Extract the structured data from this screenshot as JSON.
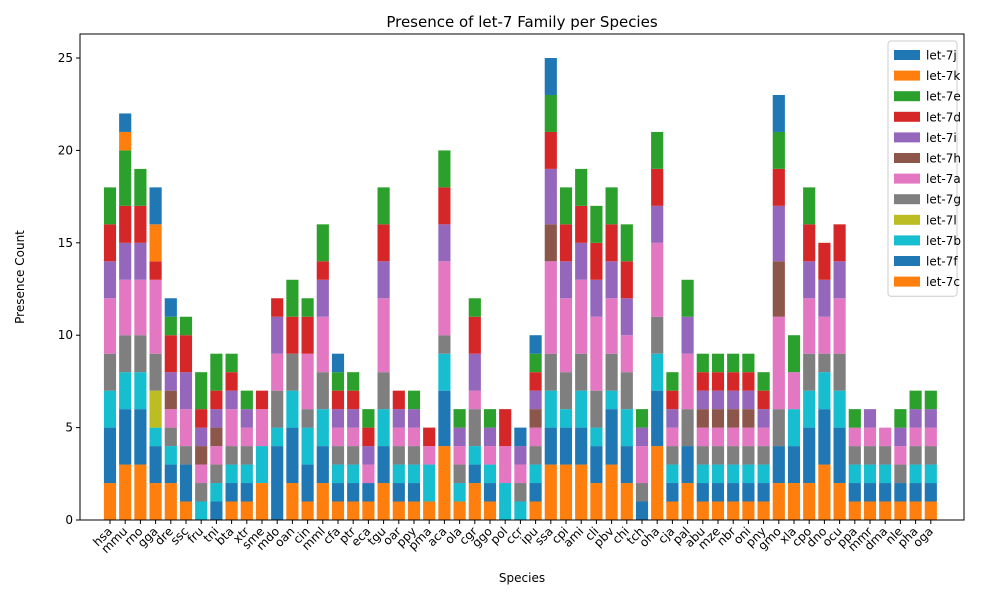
{
  "chart_data": {
    "type": "bar",
    "stacked": true,
    "title": "Presence of let-7 Family per Species",
    "xlabel": "Species",
    "ylabel": "Presence Count",
    "ylim": [
      0,
      26.3
    ],
    "yticks": [
      0,
      5,
      10,
      15,
      20,
      25
    ],
    "grid": false,
    "legend": "top-right",
    "categories": [
      "hsa",
      "mmu",
      "rno",
      "gga",
      "dre",
      "ssc",
      "fru",
      "tni",
      "bta",
      "xtr",
      "sme",
      "mdo",
      "oan",
      "cin",
      "mml",
      "cfa",
      "ptr",
      "eca",
      "tgu",
      "oar",
      "ppy",
      "pma",
      "aca",
      "ola",
      "cgr",
      "ggo",
      "pol",
      "ccr",
      "ipu",
      "ssa",
      "cpi",
      "ami",
      "cli",
      "pbv",
      "chi",
      "tch",
      "oha",
      "cja",
      "pal",
      "abu",
      "mze",
      "nbr",
      "oni",
      "pny",
      "gmo",
      "xla",
      "cpo",
      "dno",
      "ocu",
      "ppa",
      "mmr",
      "dma",
      "nle",
      "pha",
      "oga"
    ],
    "series": [
      {
        "name": "let-7c",
        "color": "#ff7f0e",
        "values": [
          2,
          3,
          3,
          2,
          2,
          1,
          0,
          0,
          1,
          1,
          2,
          0,
          2,
          1,
          2,
          1,
          1,
          1,
          2,
          1,
          1,
          1,
          4,
          1,
          2,
          1,
          0,
          0,
          1,
          3,
          3,
          3,
          2,
          3,
          2,
          0,
          4,
          1,
          2,
          1,
          1,
          1,
          1,
          1,
          2,
          2,
          2,
          3,
          2,
          1,
          1,
          1,
          1,
          1,
          1
        ]
      },
      {
        "name": "let-7f",
        "color": "#1f77b4",
        "values": [
          3,
          3,
          3,
          2,
          1,
          2,
          0,
          1,
          1,
          1,
          0,
          4,
          3,
          2,
          2,
          1,
          1,
          1,
          2,
          1,
          1,
          0,
          3,
          0,
          1,
          1,
          0,
          0,
          1,
          2,
          2,
          2,
          2,
          3,
          2,
          1,
          3,
          1,
          2,
          1,
          1,
          1,
          1,
          1,
          2,
          2,
          3,
          3,
          3,
          1,
          1,
          1,
          1,
          1,
          1
        ]
      },
      {
        "name": "let-7b",
        "color": "#17becf",
        "values": [
          2,
          2,
          2,
          1,
          1,
          0,
          1,
          1,
          1,
          1,
          2,
          1,
          2,
          2,
          2,
          1,
          1,
          0,
          2,
          1,
          1,
          2,
          2,
          1,
          1,
          1,
          2,
          1,
          1,
          2,
          1,
          2,
          1,
          1,
          2,
          0,
          2,
          1,
          0,
          1,
          1,
          1,
          1,
          1,
          0,
          2,
          2,
          2,
          2,
          1,
          1,
          1,
          0,
          1,
          1
        ]
      },
      {
        "name": "let-7l",
        "color": "#bcbd22",
        "values": [
          0,
          0,
          0,
          2,
          0,
          0,
          0,
          0,
          0,
          0,
          0,
          0,
          0,
          0,
          0,
          0,
          0,
          0,
          0,
          0,
          0,
          0,
          0,
          0,
          0,
          0,
          0,
          0,
          0,
          0,
          0,
          0,
          0,
          0,
          0,
          0,
          0,
          0,
          0,
          0,
          0,
          0,
          0,
          0,
          0,
          0,
          0,
          0,
          0,
          0,
          0,
          0,
          0,
          0,
          0
        ]
      },
      {
        "name": "let-7g",
        "color": "#7f7f7f",
        "values": [
          2,
          2,
          2,
          2,
          1,
          1,
          1,
          1,
          1,
          1,
          0,
          2,
          2,
          1,
          2,
          1,
          1,
          0,
          2,
          1,
          1,
          0,
          1,
          1,
          2,
          0,
          0,
          1,
          1,
          2,
          2,
          2,
          2,
          2,
          2,
          1,
          2,
          1,
          2,
          1,
          1,
          1,
          1,
          1,
          2,
          0,
          2,
          1,
          2,
          1,
          1,
          1,
          1,
          1,
          1
        ]
      },
      {
        "name": "let-7a",
        "color": "#e377c2",
        "values": [
          3,
          3,
          3,
          4,
          1,
          2,
          1,
          1,
          2,
          1,
          2,
          2,
          0,
          3,
          3,
          1,
          1,
          1,
          4,
          1,
          1,
          1,
          4,
          1,
          1,
          1,
          2,
          1,
          1,
          5,
          4,
          4,
          4,
          3,
          2,
          2,
          4,
          1,
          3,
          1,
          1,
          1,
          1,
          1,
          5,
          2,
          3,
          2,
          3,
          1,
          1,
          1,
          1,
          1,
          1
        ]
      },
      {
        "name": "let-7h",
        "color": "#8c564b",
        "values": [
          0,
          0,
          0,
          0,
          1,
          0,
          1,
          1,
          0,
          0,
          0,
          0,
          0,
          0,
          0,
          0,
          0,
          0,
          0,
          0,
          0,
          0,
          0,
          0,
          0,
          0,
          0,
          0,
          1,
          2,
          0,
          0,
          0,
          0,
          0,
          0,
          0,
          0,
          0,
          1,
          1,
          1,
          1,
          0,
          3,
          0,
          0,
          0,
          0,
          0,
          0,
          0,
          0,
          0,
          0
        ]
      },
      {
        "name": "let-7i",
        "color": "#9467bd",
        "values": [
          2,
          2,
          2,
          0,
          1,
          2,
          1,
          1,
          1,
          1,
          0,
          2,
          0,
          0,
          2,
          1,
          1,
          1,
          2,
          1,
          1,
          0,
          2,
          1,
          2,
          1,
          0,
          1,
          1,
          3,
          2,
          2,
          2,
          2,
          2,
          1,
          2,
          1,
          2,
          1,
          1,
          1,
          1,
          1,
          3,
          0,
          2,
          2,
          2,
          0,
          1,
          0,
          1,
          1,
          1
        ]
      },
      {
        "name": "let-7d",
        "color": "#d62728",
        "values": [
          2,
          2,
          2,
          1,
          2,
          2,
          1,
          1,
          1,
          0,
          1,
          1,
          2,
          2,
          1,
          1,
          1,
          1,
          2,
          1,
          0,
          1,
          2,
          0,
          2,
          0,
          2,
          0,
          1,
          2,
          2,
          2,
          2,
          2,
          2,
          0,
          2,
          1,
          0,
          1,
          1,
          1,
          1,
          1,
          2,
          0,
          2,
          2,
          2,
          0,
          0,
          0,
          0,
          0,
          0
        ]
      },
      {
        "name": "let-7e",
        "color": "#2ca02c",
        "values": [
          2,
          3,
          2,
          0,
          1,
          1,
          2,
          2,
          1,
          1,
          0,
          0,
          2,
          1,
          2,
          1,
          1,
          1,
          2,
          0,
          1,
          0,
          2,
          1,
          1,
          1,
          0,
          0,
          1,
          2,
          2,
          2,
          2,
          2,
          2,
          1,
          2,
          1,
          2,
          1,
          1,
          1,
          1,
          1,
          2,
          2,
          2,
          0,
          0,
          1,
          0,
          0,
          1,
          1,
          1
        ]
      },
      {
        "name": "let-7k",
        "color": "#ff7f0e",
        "values": [
          0,
          1,
          0,
          2,
          0,
          0,
          0,
          0,
          0,
          0,
          0,
          0,
          0,
          0,
          0,
          0,
          0,
          0,
          0,
          0,
          0,
          0,
          0,
          0,
          0,
          0,
          0,
          0,
          0,
          0,
          0,
          0,
          0,
          0,
          0,
          0,
          0,
          0,
          0,
          0,
          0,
          0,
          0,
          0,
          0,
          0,
          0,
          0,
          0,
          0,
          0,
          0,
          0,
          0,
          0
        ]
      },
      {
        "name": "let-7j",
        "color": "#1f77b4",
        "values": [
          0,
          1,
          0,
          2,
          1,
          0,
          0,
          0,
          0,
          0,
          0,
          0,
          0,
          0,
          0,
          1,
          0,
          0,
          0,
          0,
          0,
          0,
          0,
          0,
          0,
          0,
          0,
          1,
          1,
          2,
          0,
          0,
          0,
          0,
          0,
          0,
          0,
          0,
          0,
          0,
          0,
          0,
          0,
          0,
          2,
          0,
          0,
          0,
          0,
          0,
          0,
          0,
          0,
          0,
          0
        ]
      }
    ],
    "legend_order": [
      "let-7j",
      "let-7k",
      "let-7e",
      "let-7d",
      "let-7i",
      "let-7h",
      "let-7a",
      "let-7g",
      "let-7l",
      "let-7b",
      "let-7f",
      "let-7c"
    ]
  }
}
